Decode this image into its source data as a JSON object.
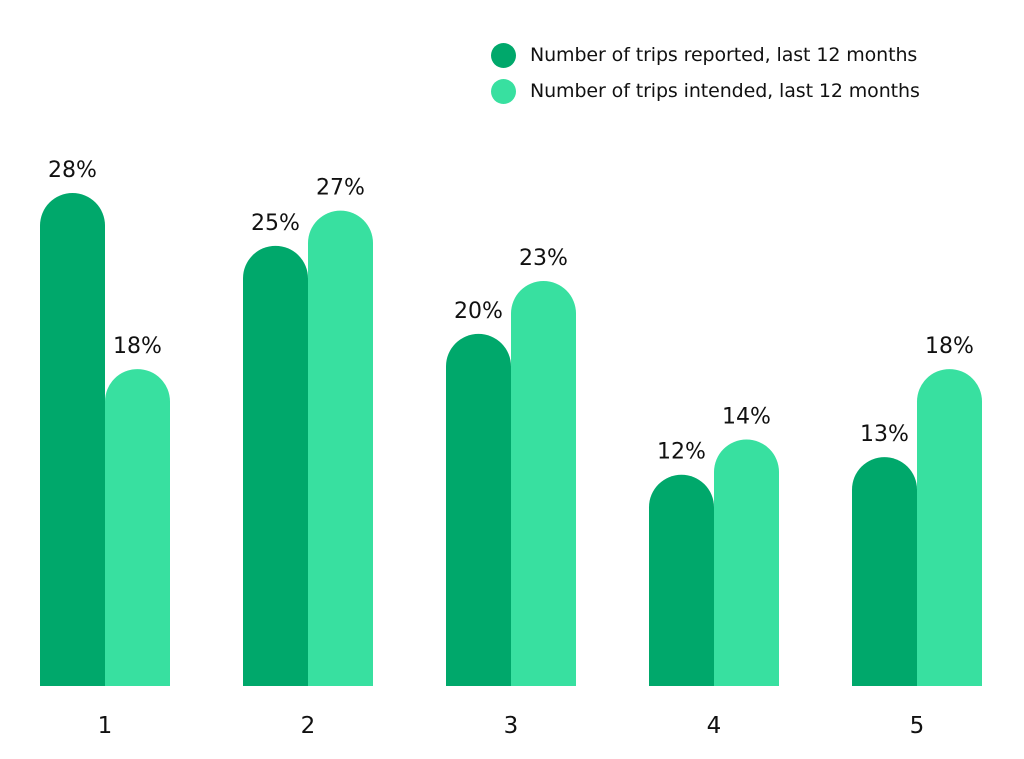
{
  "colors": {
    "reported": "#00a86b",
    "intended": "#38e0a0",
    "text": "#111111",
    "background": "#ffffff"
  },
  "legend": {
    "items": [
      {
        "label": "Number of trips reported, last 12 months",
        "color": "#00a86b"
      },
      {
        "label": "Number of trips intended, last 12 months",
        "color": "#38e0a0"
      }
    ]
  },
  "chart_data": {
    "type": "bar",
    "title": "",
    "xlabel": "",
    "ylabel": "",
    "categories": [
      "1",
      "2",
      "3",
      "4",
      "5"
    ],
    "series": [
      {
        "name": "Number of trips reported, last 12 months",
        "values": [
          28,
          25,
          20,
          12,
          13
        ],
        "labels": [
          "28%",
          "25%",
          "20%",
          "12%",
          "13%"
        ],
        "color": "#00a86b"
      },
      {
        "name": "Number of trips intended, last 12 months",
        "values": [
          18,
          27,
          23,
          14,
          18
        ],
        "labels": [
          "18%",
          "27%",
          "23%",
          "14%",
          "18%"
        ],
        "color": "#38e0a0"
      }
    ],
    "ylim": [
      0,
      28
    ],
    "grid": false,
    "legend_position": "top-right",
    "bar_shape": "rounded-top"
  }
}
